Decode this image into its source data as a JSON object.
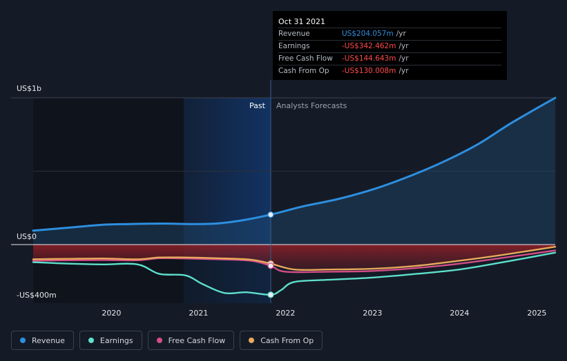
{
  "tooltip": {
    "date": "Oct 31 2021",
    "rows": [
      {
        "label": "Revenue",
        "value": "US$204.057m",
        "unit": "/yr",
        "color": "#2d8fe0"
      },
      {
        "label": "Earnings",
        "value": "-US$342.462m",
        "unit": "/yr",
        "color": "#ff4b4b"
      },
      {
        "label": "Free Cash Flow",
        "value": "-US$144.643m",
        "unit": "/yr",
        "color": "#ff4b4b"
      },
      {
        "label": "Cash From Op",
        "value": "-US$130.008m",
        "unit": "/yr",
        "color": "#ff4b4b"
      }
    ]
  },
  "chart_data": {
    "type": "line",
    "past_label": "Past",
    "forecast_label": "Analysts Forecasts",
    "y_tick_labels": [
      "US$1b",
      "US$0",
      "-US$400m"
    ],
    "x_tick_labels": [
      "2020",
      "2021",
      "2022",
      "2023",
      "2024",
      "2025"
    ],
    "ylim": [
      -400,
      1000
    ],
    "xlim": [
      2019.1,
      2025.1
    ],
    "past_end": 2021.83,
    "highlight_start": 2020.83,
    "legend_position": "bottom-left",
    "series": [
      {
        "name": "Revenue",
        "color": "#2d8fe0",
        "x": [
          2019.1,
          2019.5,
          2019.9,
          2020.2,
          2020.6,
          2020.9,
          2021.2,
          2021.5,
          2021.83,
          2022.2,
          2022.6,
          2023.0,
          2023.4,
          2023.8,
          2024.2,
          2024.6,
          2025.1
        ],
        "y": [
          95,
          115,
          135,
          140,
          143,
          140,
          143,
          165,
          204,
          260,
          310,
          375,
          460,
          560,
          680,
          830,
          1000
        ]
      },
      {
        "name": "Earnings",
        "color": "#5ee0cc",
        "x": [
          2019.1,
          2019.5,
          2019.9,
          2020.3,
          2020.55,
          2020.85,
          2021.05,
          2021.3,
          2021.55,
          2021.83,
          2021.95,
          2022.1,
          2022.5,
          2023.0,
          2023.5,
          2024.0,
          2024.5,
          2025.1
        ],
        "y": [
          -120,
          -130,
          -135,
          -135,
          -200,
          -210,
          -270,
          -330,
          -325,
          -342,
          -310,
          -255,
          -240,
          -225,
          -200,
          -170,
          -120,
          -55
        ]
      },
      {
        "name": "Free Cash Flow",
        "color": "#d44e88",
        "x": [
          2019.1,
          2019.5,
          2019.9,
          2020.3,
          2020.55,
          2020.85,
          2021.2,
          2021.6,
          2021.83,
          2022.0,
          2022.5,
          2023.0,
          2023.5,
          2024.0,
          2024.5,
          2025.1
        ],
        "y": [
          -110,
          -107,
          -105,
          -107,
          -93,
          -95,
          -100,
          -110,
          -145,
          -185,
          -185,
          -180,
          -160,
          -130,
          -90,
          -40
        ]
      },
      {
        "name": "Cash From Op",
        "color": "#e9a95b",
        "x": [
          2019.1,
          2019.5,
          2019.9,
          2020.3,
          2020.55,
          2020.85,
          2021.2,
          2021.6,
          2021.83,
          2022.1,
          2022.5,
          2023.0,
          2023.5,
          2024.0,
          2024.5,
          2025.1
        ],
        "y": [
          -100,
          -97,
          -95,
          -100,
          -88,
          -88,
          -93,
          -103,
          -130,
          -170,
          -170,
          -165,
          -145,
          -110,
          -70,
          -15
        ]
      }
    ]
  }
}
